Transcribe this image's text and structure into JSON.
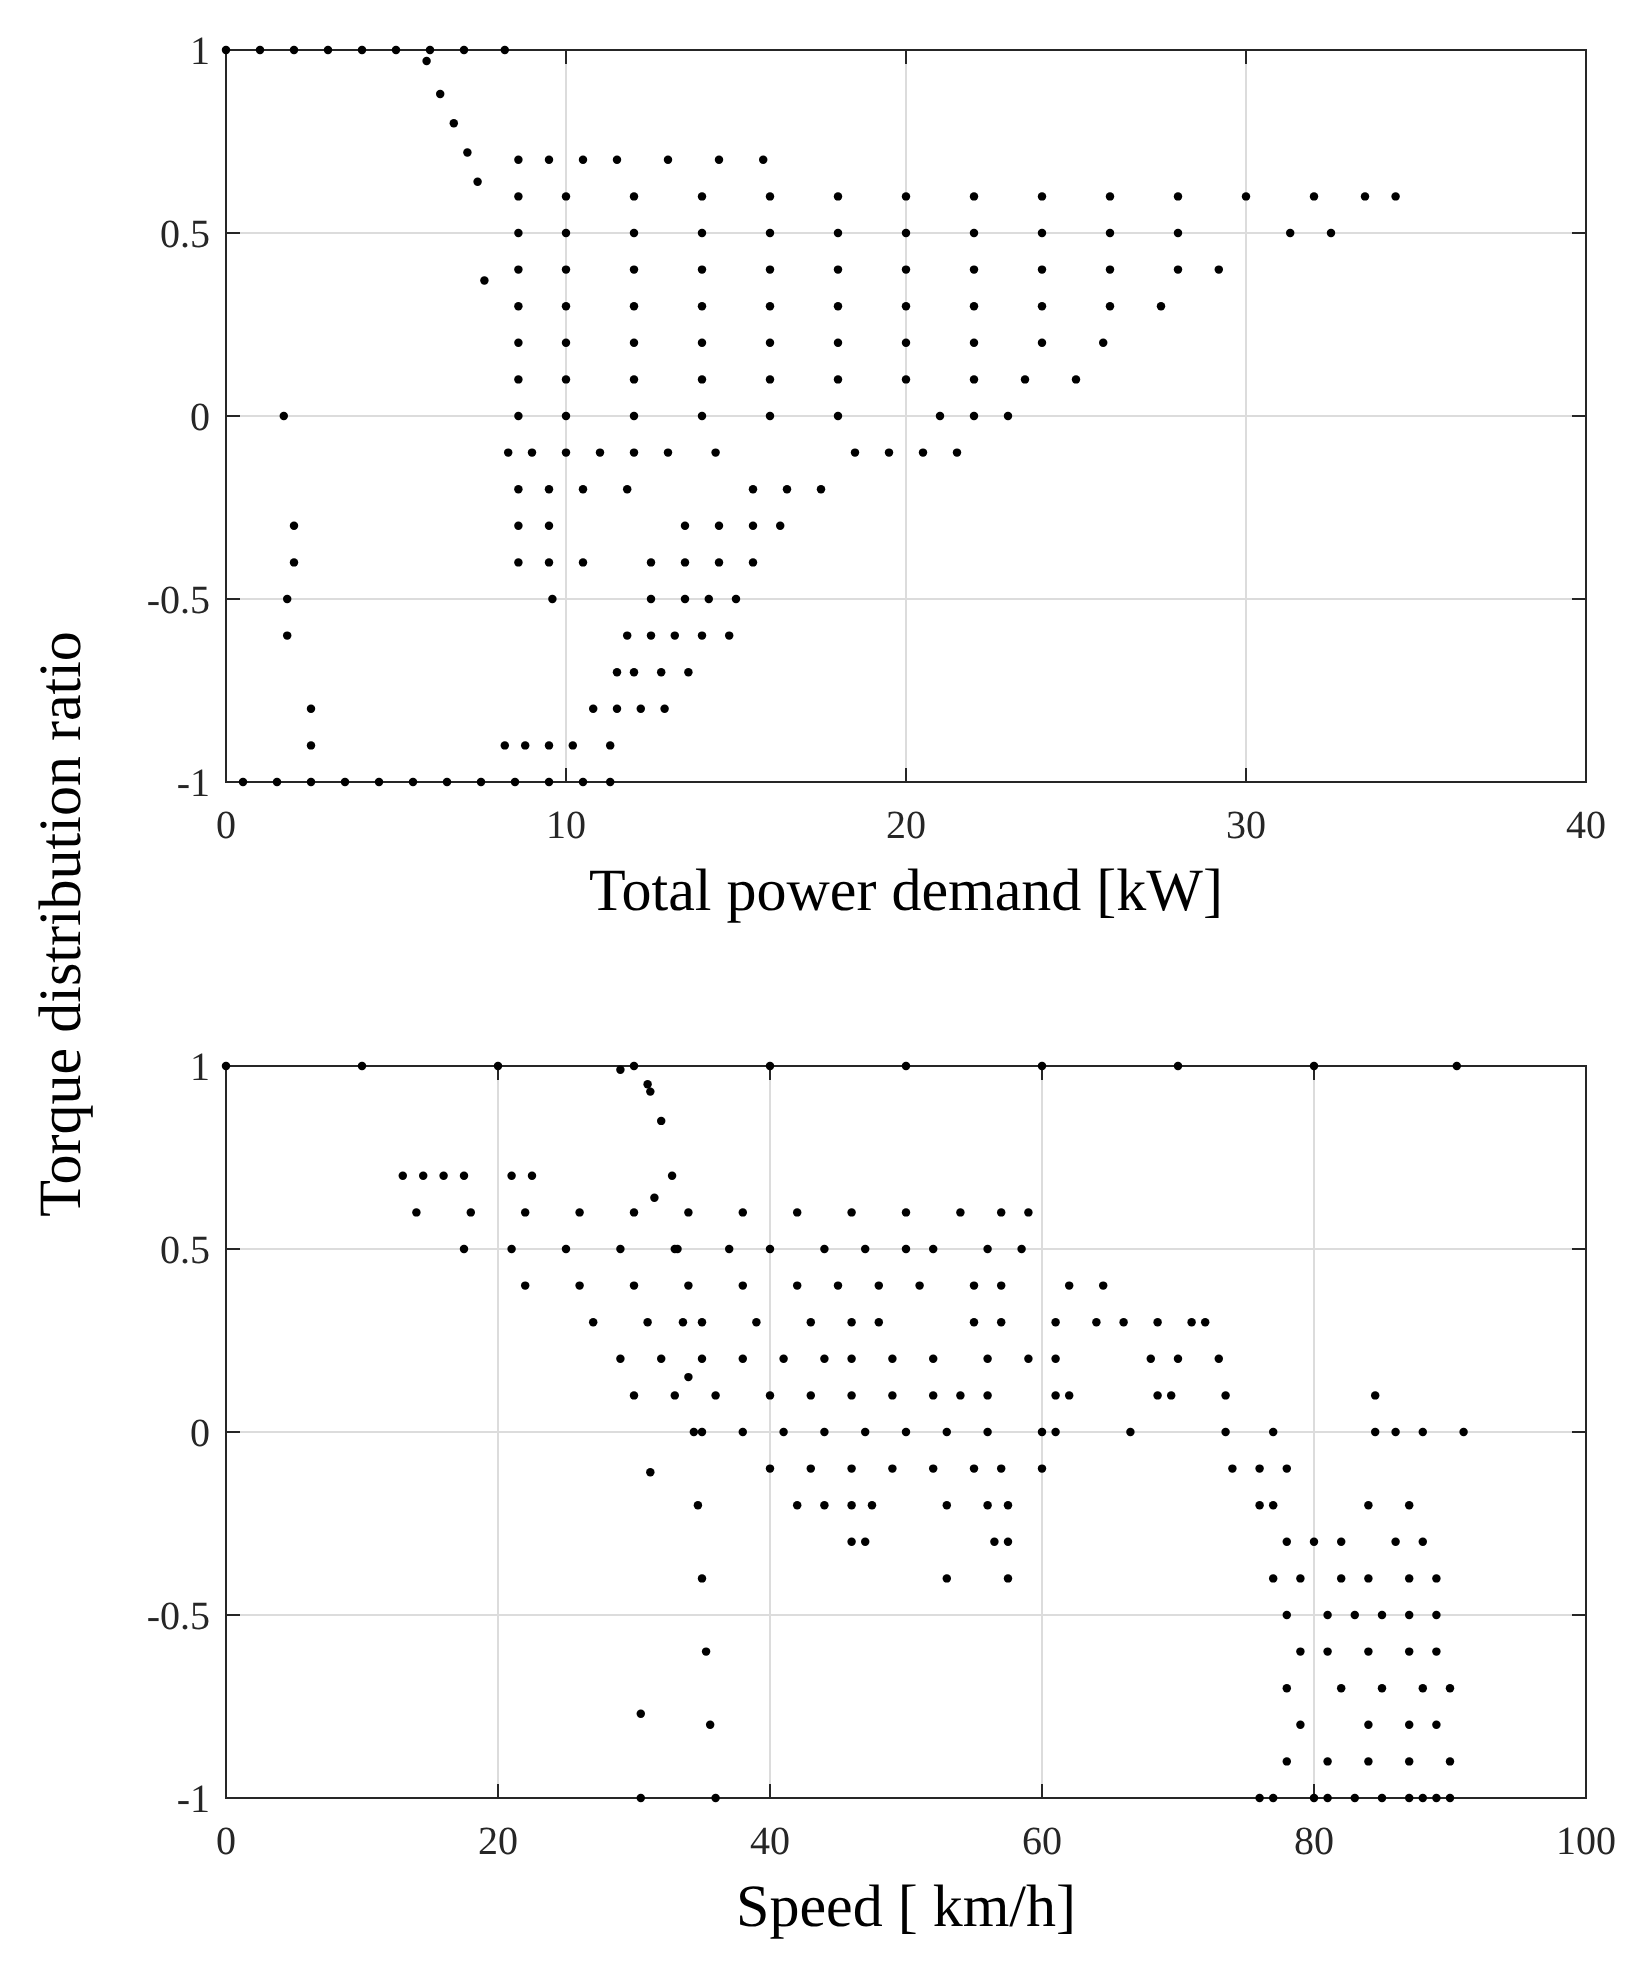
{
  "chart_data": [
    {
      "type": "scatter",
      "xlabel": "Total power demand [kW]",
      "ylabel": "Torque distribution ratio",
      "xlim": [
        0,
        40
      ],
      "xticks": [
        0,
        10,
        20,
        30,
        40
      ],
      "ylim": [
        -1,
        1
      ],
      "yticks": [
        -1,
        {
          "value": -0.5,
          "label": "-0.5"
        },
        0,
        0.5,
        1
      ],
      "grid": true,
      "marker": "circle",
      "series": [
        {
          "color": "#000000",
          "x": [
            0,
            1,
            2,
            3,
            4,
            5,
            6,
            7,
            8.2,
            5.9,
            6.3,
            6.7,
            7.1,
            7.4,
            7.6,
            8.6,
            9.5,
            10.5,
            11.5,
            13,
            14.5,
            15.8,
            8.6,
            10,
            12,
            14,
            16,
            18,
            20,
            22,
            24,
            26,
            28,
            30,
            32,
            33.5,
            34.4,
            8.6,
            10,
            12,
            14,
            16,
            18,
            20,
            22,
            24,
            26,
            28,
            31.3,
            32.5,
            8.6,
            10,
            12,
            14,
            16,
            18,
            20,
            22,
            24,
            26,
            28,
            29.2,
            8.6,
            10,
            12,
            14,
            16,
            18,
            20,
            22,
            24,
            26,
            27.5,
            8.6,
            10,
            12,
            14,
            16,
            18,
            20,
            22,
            24,
            25.8,
            8.6,
            10,
            12,
            14,
            16,
            18,
            20,
            22,
            23.5,
            25,
            8.6,
            10,
            12,
            14,
            16,
            18,
            21,
            22,
            23,
            8.3,
            9,
            10,
            11,
            12,
            13,
            14.4,
            18.5,
            19.5,
            20.5,
            21.5,
            8.6,
            9.5,
            10.5,
            11.8,
            15.5,
            16.5,
            17.5,
            8.6,
            9.5,
            13.5,
            14.5,
            15.5,
            16.3,
            8.6,
            9.5,
            10.5,
            12.5,
            13.5,
            14.5,
            15.5,
            9.6,
            12.5,
            13.5,
            14.2,
            15,
            11.8,
            12.5,
            13.2,
            14,
            14.8,
            11.5,
            12,
            12.8,
            13.6,
            10.8,
            11.5,
            12.2,
            12.9,
            8.2,
            8.8,
            9.5,
            10.2,
            11.3,
            0.5,
            1.5,
            2.5,
            3.5,
            4.5,
            5.5,
            6.5,
            7.5,
            8.5,
            9.5,
            10.5,
            11.3,
            1.7,
            2,
            2,
            1.8,
            1.8,
            2.5,
            2.5
          ],
          "values": [
            1,
            1,
            1,
            1,
            1,
            1,
            1,
            1,
            1,
            0.97,
            0.88,
            0.8,
            0.72,
            0.64,
            0.37,
            0.7,
            0.7,
            0.7,
            0.7,
            0.7,
            0.7,
            0.7,
            0.6,
            0.6,
            0.6,
            0.6,
            0.6,
            0.6,
            0.6,
            0.6,
            0.6,
            0.6,
            0.6,
            0.6,
            0.6,
            0.6,
            0.6,
            0.5,
            0.5,
            0.5,
            0.5,
            0.5,
            0.5,
            0.5,
            0.5,
            0.5,
            0.5,
            0.5,
            0.5,
            0.5,
            0.4,
            0.4,
            0.4,
            0.4,
            0.4,
            0.4,
            0.4,
            0.4,
            0.4,
            0.4,
            0.4,
            0.4,
            0.3,
            0.3,
            0.3,
            0.3,
            0.3,
            0.3,
            0.3,
            0.3,
            0.3,
            0.3,
            0.3,
            0.2,
            0.2,
            0.2,
            0.2,
            0.2,
            0.2,
            0.2,
            0.2,
            0.2,
            0.2,
            0.1,
            0.1,
            0.1,
            0.1,
            0.1,
            0.1,
            0.1,
            0.1,
            0.1,
            0.1,
            0,
            0,
            0,
            0,
            0,
            0,
            0,
            0,
            0,
            -0.1,
            -0.1,
            -0.1,
            -0.1,
            -0.1,
            -0.1,
            -0.1,
            -0.1,
            -0.1,
            -0.1,
            -0.1,
            -0.2,
            -0.2,
            -0.2,
            -0.2,
            -0.2,
            -0.2,
            -0.2,
            -0.3,
            -0.3,
            -0.3,
            -0.3,
            -0.3,
            -0.3,
            -0.4,
            -0.4,
            -0.4,
            -0.4,
            -0.4,
            -0.4,
            -0.4,
            -0.5,
            -0.5,
            -0.5,
            -0.5,
            -0.5,
            -0.6,
            -0.6,
            -0.6,
            -0.6,
            -0.6,
            -0.7,
            -0.7,
            -0.7,
            -0.7,
            -0.8,
            -0.8,
            -0.8,
            -0.8,
            -0.9,
            -0.9,
            -0.9,
            -0.9,
            -0.9,
            -1,
            -1,
            -1,
            -1,
            -1,
            -1,
            -1,
            -1,
            -1,
            -1,
            -1,
            -1,
            0,
            -0.3,
            -0.4,
            -0.5,
            -0.6,
            -0.8,
            -0.9
          ]
        }
      ]
    },
    {
      "type": "scatter",
      "xlabel": "Speed [ km/h]",
      "xlim": [
        0,
        100
      ],
      "xticks": [
        0,
        20,
        40,
        60,
        80,
        100
      ],
      "ylim": [
        -1,
        1
      ],
      "yticks": [
        -1,
        -0.5,
        0,
        0.5,
        1
      ],
      "grid": true,
      "marker": "circle",
      "series": [
        {
          "color": "#000000",
          "x": [
            0,
            10,
            20,
            30,
            40,
            50,
            60,
            70,
            80,
            90.5,
            29,
            31,
            31.2,
            32,
            32.8,
            33.2,
            33.6,
            34,
            34.4,
            34.7,
            35,
            35.3,
            35.6,
            36,
            31.5,
            30.5,
            30.5,
            31.2,
            13,
            14.5,
            16,
            17.5,
            21,
            22.5,
            14,
            18,
            22,
            26,
            30,
            34,
            38,
            42,
            46,
            50,
            54,
            57,
            59,
            17.5,
            21,
            25,
            29,
            33,
            37,
            40,
            44,
            47,
            50,
            52,
            56,
            58.5,
            22,
            26,
            30,
            34,
            38,
            42,
            45,
            48,
            51,
            55,
            57,
            62,
            64.5,
            27,
            31,
            35,
            39,
            43,
            46,
            48,
            55,
            57,
            61,
            64,
            66,
            68.5,
            71,
            72,
            29,
            32,
            35,
            38,
            41,
            44,
            46,
            49,
            52,
            56,
            59,
            61,
            68,
            70,
            73,
            30,
            33,
            36,
            40,
            43,
            46,
            49,
            52,
            54,
            56,
            61,
            62,
            68.5,
            69.5,
            73.5,
            84.5,
            35,
            38,
            41,
            44,
            47,
            50,
            53,
            56,
            60,
            61,
            66.5,
            73.5,
            77,
            84.5,
            86,
            88,
            91,
            40,
            43,
            46,
            49,
            52,
            55,
            57,
            60,
            74,
            76,
            78,
            42,
            44,
            46,
            47.5,
            53,
            56,
            57.5,
            76,
            77,
            84,
            87,
            46,
            47,
            56.5,
            57.5,
            78,
            80,
            82,
            86,
            88,
            53,
            57.5,
            77,
            79,
            82,
            84,
            87,
            89,
            78,
            81,
            83,
            85,
            87,
            89,
            79,
            81,
            84,
            87,
            89,
            78,
            82,
            85,
            88,
            90,
            79,
            84,
            87,
            89,
            78,
            81,
            84,
            87,
            90,
            76,
            77,
            80,
            81,
            83,
            85,
            87,
            88,
            89,
            90
          ],
          "values": [
            1,
            1,
            1,
            1,
            1,
            1,
            1,
            1,
            1,
            1,
            0.99,
            0.95,
            0.93,
            0.85,
            0.7,
            0.5,
            0.3,
            0.15,
            0,
            -0.2,
            -0.4,
            -0.6,
            -0.8,
            -1,
            0.64,
            -0.77,
            -1,
            -0.11,
            0.7,
            0.7,
            0.7,
            0.7,
            0.7,
            0.7,
            0.6,
            0.6,
            0.6,
            0.6,
            0.6,
            0.6,
            0.6,
            0.6,
            0.6,
            0.6,
            0.6,
            0.6,
            0.6,
            0.5,
            0.5,
            0.5,
            0.5,
            0.5,
            0.5,
            0.5,
            0.5,
            0.5,
            0.5,
            0.5,
            0.5,
            0.5,
            0.4,
            0.4,
            0.4,
            0.4,
            0.4,
            0.4,
            0.4,
            0.4,
            0.4,
            0.4,
            0.4,
            0.4,
            0.4,
            0.3,
            0.3,
            0.3,
            0.3,
            0.3,
            0.3,
            0.3,
            0.3,
            0.3,
            0.3,
            0.3,
            0.3,
            0.3,
            0.3,
            0.3,
            0.2,
            0.2,
            0.2,
            0.2,
            0.2,
            0.2,
            0.2,
            0.2,
            0.2,
            0.2,
            0.2,
            0.2,
            0.2,
            0.2,
            0.2,
            0.1,
            0.1,
            0.1,
            0.1,
            0.1,
            0.1,
            0.1,
            0.1,
            0.1,
            0.1,
            0.1,
            0.1,
            0.1,
            0.1,
            0.1,
            0.1,
            0,
            0,
            0,
            0,
            0,
            0,
            0,
            0,
            0,
            0,
            0,
            0,
            0,
            0,
            0,
            0,
            0,
            -0.1,
            -0.1,
            -0.1,
            -0.1,
            -0.1,
            -0.1,
            -0.1,
            -0.1,
            -0.1,
            -0.1,
            -0.1,
            -0.2,
            -0.2,
            -0.2,
            -0.2,
            -0.2,
            -0.2,
            -0.2,
            -0.2,
            -0.2,
            -0.2,
            -0.2,
            -0.3,
            -0.3,
            -0.3,
            -0.3,
            -0.3,
            -0.3,
            -0.3,
            -0.3,
            -0.3,
            -0.4,
            -0.4,
            -0.4,
            -0.4,
            -0.4,
            -0.4,
            -0.4,
            -0.4,
            -0.5,
            -0.5,
            -0.5,
            -0.5,
            -0.5,
            -0.5,
            -0.6,
            -0.6,
            -0.6,
            -0.6,
            -0.6,
            -0.7,
            -0.7,
            -0.7,
            -0.7,
            -0.7,
            -0.8,
            -0.8,
            -0.8,
            -0.8,
            -0.9,
            -0.9,
            -0.9,
            -0.9,
            -0.9,
            -1,
            -1,
            -1,
            -1,
            -1,
            -1,
            -1,
            -1,
            -1,
            -1
          ]
        }
      ]
    }
  ]
}
